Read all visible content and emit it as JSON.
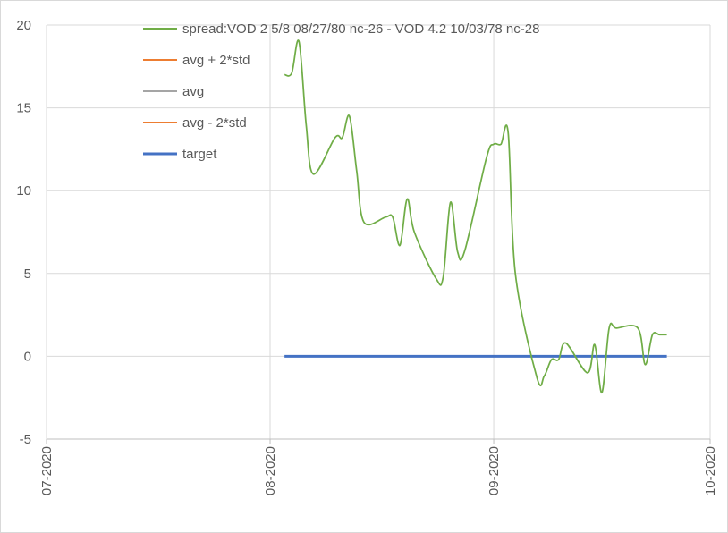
{
  "chart_data": {
    "type": "line",
    "title": "",
    "xlabel": "",
    "ylabel": "",
    "ylim": [
      -5,
      20
    ],
    "yticks": [
      20,
      15,
      10,
      5,
      0,
      -5
    ],
    "xlim": [
      "2020-07-01",
      "2020-10-01"
    ],
    "xticks": [
      "07-2020",
      "08-2020",
      "09-2020",
      "10-2020"
    ],
    "grid": true,
    "legend_position": "top",
    "series": [
      {
        "name": "spread:VOD 2 5/8 08/27/80 nc-26 - VOD 4.2 10/03/78 nc-28",
        "color": "#70ad47",
        "x": [
          "2020-08-03",
          "2020-08-04",
          "2020-08-05",
          "2020-08-06",
          "2020-08-07",
          "2020-08-10",
          "2020-08-11",
          "2020-08-12",
          "2020-08-13",
          "2020-08-14",
          "2020-08-17",
          "2020-08-18",
          "2020-08-19",
          "2020-08-20",
          "2020-08-21",
          "2020-08-24",
          "2020-08-25",
          "2020-08-26",
          "2020-08-27",
          "2020-08-28",
          "2020-08-31",
          "2020-09-01",
          "2020-09-02",
          "2020-09-03",
          "2020-09-04",
          "2020-09-07",
          "2020-09-08",
          "2020-09-09",
          "2020-09-10",
          "2020-09-11",
          "2020-09-14",
          "2020-09-15",
          "2020-09-16",
          "2020-09-17",
          "2020-09-18",
          "2020-09-21",
          "2020-09-22",
          "2020-09-23",
          "2020-09-24",
          "2020-09-25"
        ],
        "values": [
          17.0,
          17.1,
          19.0,
          14.0,
          11.0,
          13.2,
          13.2,
          14.5,
          11.2,
          8.1,
          8.4,
          8.4,
          6.7,
          9.5,
          7.5,
          4.7,
          4.8,
          9.3,
          6.3,
          6.4,
          12.0,
          12.8,
          12.8,
          13.5,
          5.0,
          -1.3,
          -1.2,
          -0.2,
          -0.2,
          0.8,
          -1.0,
          0.7,
          -2.2,
          1.7,
          1.7,
          1.7,
          -0.5,
          1.3,
          1.3,
          1.3
        ]
      },
      {
        "name": "avg + 2*std",
        "color": "#ed7d31",
        "values": []
      },
      {
        "name": "avg",
        "color": "#a5a5a5",
        "values": []
      },
      {
        "name": "avg - 2*std",
        "color": "#ed7d31",
        "values": []
      },
      {
        "name": "target",
        "color": "#4472c4",
        "x": [
          "2020-08-03",
          "2020-09-25"
        ],
        "values": [
          0,
          0
        ]
      }
    ]
  }
}
